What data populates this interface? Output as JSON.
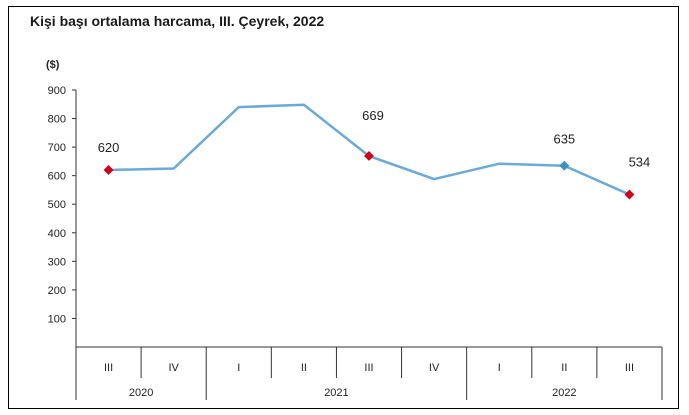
{
  "chart_data": {
    "type": "line",
    "title": "Kişi başı ortalama harcama, III. Çeyrek, 2022",
    "unit_label": "($)",
    "ylim": [
      0,
      900
    ],
    "y_ticks": [
      100,
      200,
      300,
      400,
      500,
      600,
      700,
      800,
      900
    ],
    "categories": [
      "III",
      "IV",
      "I",
      "II",
      "III",
      "IV",
      "I",
      "II",
      "III"
    ],
    "year_groups": [
      {
        "label": "2020",
        "span": 2
      },
      {
        "label": "2021",
        "span": 4
      },
      {
        "label": "2022",
        "span": 3
      }
    ],
    "series": [
      {
        "values": [
          620,
          625,
          840,
          848,
          669,
          588,
          642,
          635,
          534
        ]
      }
    ],
    "data_labels": [
      {
        "index": 0,
        "text": "620"
      },
      {
        "index": 4,
        "text": "669"
      },
      {
        "index": 7,
        "text": "635"
      },
      {
        "index": 8,
        "text": "534"
      }
    ],
    "marker_colors": {
      "0": "#d0021b",
      "4": "#d0021b",
      "7": "#3a8fc4",
      "8": "#d0021b"
    },
    "line_color": "#6aa9d8",
    "grid": false,
    "legend": "none"
  }
}
